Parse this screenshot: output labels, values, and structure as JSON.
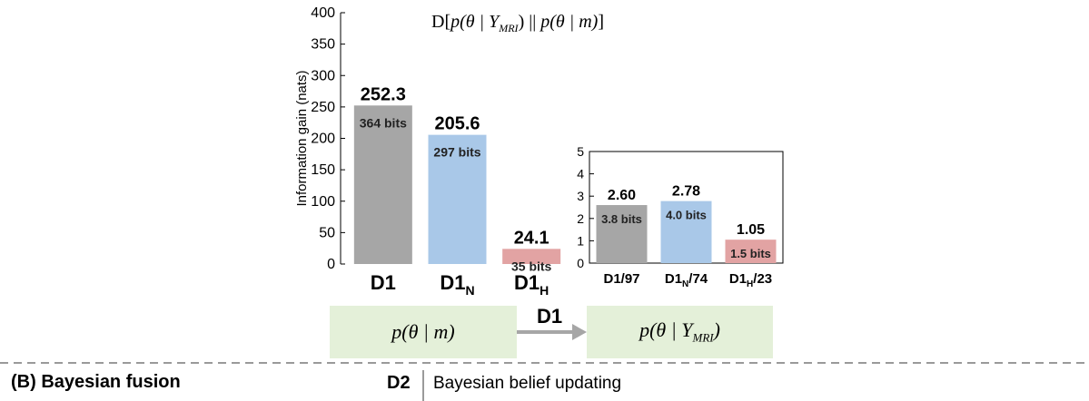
{
  "formula": {
    "lhs": "D[",
    "p1": "p(",
    "p1_mid": "θ | Y",
    "p1_sub": "MRI",
    "p1_close": ")",
    "sep": " || ",
    "p2": "p(θ | m)",
    "rhs": "]"
  },
  "chart_data": [
    {
      "type": "bar",
      "ylabel": "Information gain (nats)",
      "ylim": [
        0,
        400
      ],
      "yticks": [
        0,
        50,
        100,
        150,
        200,
        250,
        300,
        350,
        400
      ],
      "categories": [
        {
          "base": "D1",
          "sub": "",
          "suffix": ""
        },
        {
          "base": "D1",
          "sub": "N",
          "suffix": ""
        },
        {
          "base": "D1",
          "sub": "H",
          "suffix": ""
        }
      ],
      "values": [
        252.3,
        205.6,
        24.1
      ],
      "value_labels": [
        "252.3",
        "205.6",
        "24.1"
      ],
      "bits_labels": [
        "364 bits",
        "297 bits",
        "35 bits"
      ],
      "colors": [
        "#a6a6a6",
        "#a9c8e8",
        "#e2a3a3"
      ]
    },
    {
      "type": "bar",
      "ylim": [
        0,
        5
      ],
      "yticks": [
        0,
        1,
        2,
        3,
        4,
        5
      ],
      "categories": [
        {
          "base": "D1/97",
          "sub": "",
          "suffix": ""
        },
        {
          "base": "D1",
          "sub": "N",
          "suffix": "/74"
        },
        {
          "base": "D1",
          "sub": "H",
          "suffix": "/23"
        }
      ],
      "values": [
        2.6,
        2.78,
        1.05
      ],
      "value_labels": [
        "2.60",
        "2.78",
        "1.05"
      ],
      "bits_labels": [
        "3.8 bits",
        "4.0 bits",
        "1.5 bits"
      ],
      "colors": [
        "#a6a6a6",
        "#a9c8e8",
        "#e2a3a3"
      ]
    }
  ],
  "flow": {
    "prior": "p(θ | m)",
    "posterior_main": "p(θ | Y",
    "posterior_sub": "MRI",
    "posterior_close": ")",
    "arrow_label": "D1",
    "d2_label": "D2",
    "d2_text": "Bayesian belief updating",
    "section_title": "(B) Bayesian fusion",
    "box_color": "#e4f0d9",
    "arrow_color": "#a6a6a6",
    "dash_color": "#9a9a9a"
  }
}
